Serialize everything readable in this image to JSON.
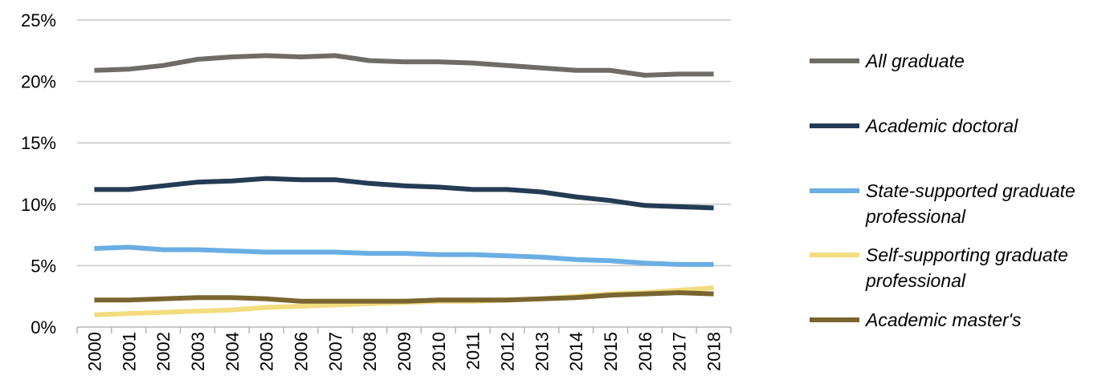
{
  "chart_data": {
    "type": "line",
    "x": [
      "2000",
      "2001",
      "2002",
      "2003",
      "2004",
      "2005",
      "2006",
      "2007",
      "2008",
      "2009",
      "2010",
      "2011",
      "2012",
      "2013",
      "2014",
      "2015",
      "2016",
      "2017",
      "2018"
    ],
    "yticks": [
      "0%",
      "5%",
      "10%",
      "15%",
      "20%",
      "25%"
    ],
    "ylim": [
      0,
      25
    ],
    "grid": true,
    "legend_position": "right",
    "series": [
      {
        "name": "All graduate",
        "color": "#6f6b66",
        "values": [
          20.9,
          21.0,
          21.3,
          21.8,
          22.0,
          22.1,
          22.0,
          22.1,
          21.7,
          21.6,
          21.6,
          21.5,
          21.3,
          21.1,
          20.9,
          20.9,
          20.5,
          20.6,
          20.6
        ]
      },
      {
        "name": "Academic doctoral",
        "color": "#243b55",
        "values": [
          11.2,
          11.2,
          11.5,
          11.8,
          11.9,
          12.1,
          12.0,
          12.0,
          11.7,
          11.5,
          11.4,
          11.2,
          11.2,
          11.0,
          10.6,
          10.3,
          9.9,
          9.8,
          9.7
        ]
      },
      {
        "name": "State-supported graduate professional",
        "color": "#6aaee3",
        "values": [
          6.4,
          6.5,
          6.3,
          6.3,
          6.2,
          6.1,
          6.1,
          6.1,
          6.0,
          6.0,
          5.9,
          5.9,
          5.8,
          5.7,
          5.5,
          5.4,
          5.2,
          5.1,
          5.1
        ]
      },
      {
        "name": "Self-supporting graduate professional",
        "color": "#f3dc7e",
        "values": [
          1.0,
          1.1,
          1.2,
          1.3,
          1.4,
          1.6,
          1.7,
          1.8,
          1.9,
          2.0,
          2.1,
          2.1,
          2.2,
          2.3,
          2.5,
          2.7,
          2.8,
          3.0,
          3.2
        ]
      },
      {
        "name": "Academic master's",
        "color": "#7a6530",
        "values": [
          2.2,
          2.2,
          2.3,
          2.4,
          2.4,
          2.3,
          2.1,
          2.1,
          2.1,
          2.1,
          2.2,
          2.2,
          2.2,
          2.3,
          2.4,
          2.6,
          2.7,
          2.8,
          2.7
        ]
      }
    ]
  },
  "legend": {
    "items": [
      {
        "lines": [
          "All graduate"
        ],
        "color": "#6f6b66"
      },
      {
        "lines": [
          "Academic doctoral"
        ],
        "color": "#243b55"
      },
      {
        "lines": [
          "State-supported graduate",
          "professional"
        ],
        "color": "#6aaee3"
      },
      {
        "lines": [
          "Self-supporting graduate",
          "professional"
        ],
        "color": "#f3dc7e"
      },
      {
        "lines": [
          "Academic master's"
        ],
        "color": "#7a6530"
      }
    ]
  }
}
